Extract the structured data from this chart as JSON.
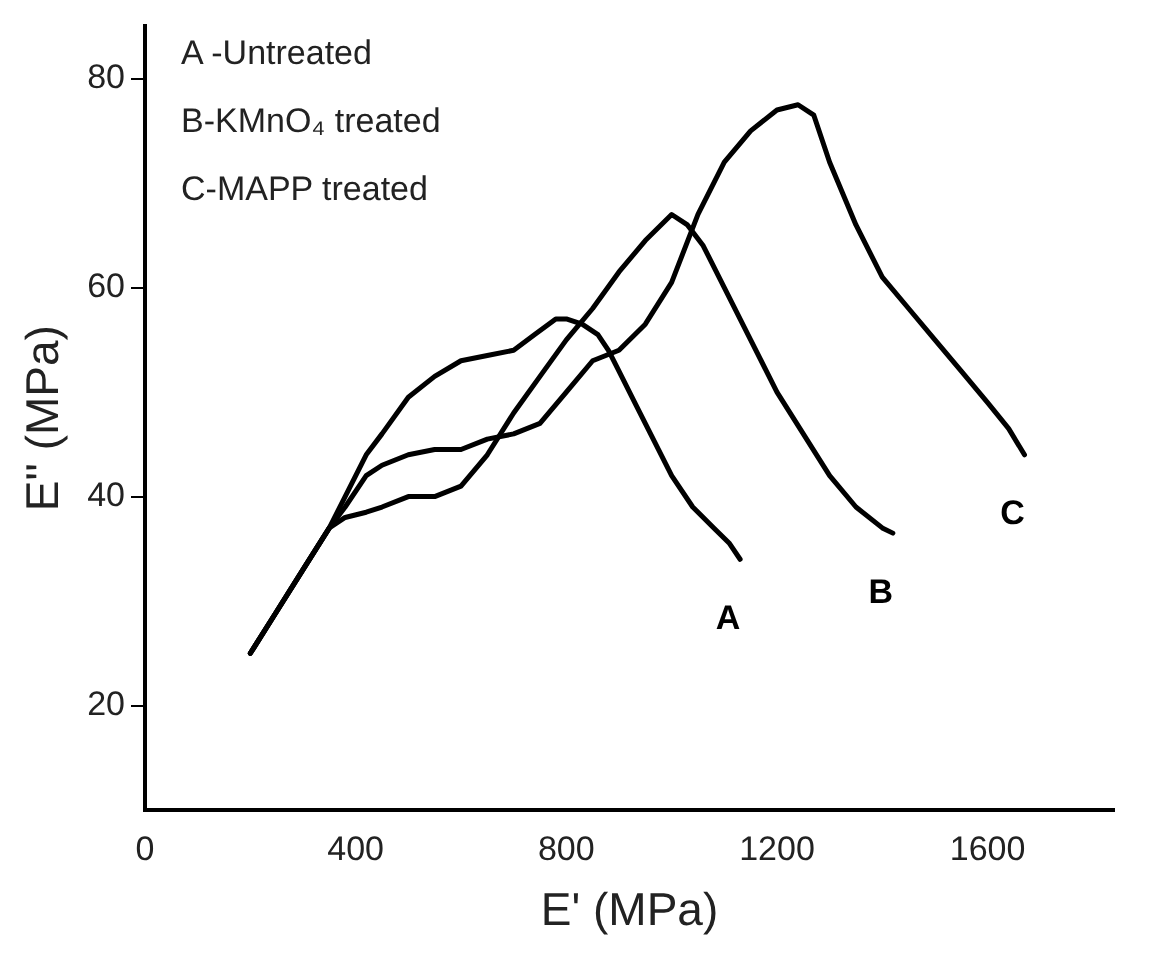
{
  "chart_data": {
    "type": "line",
    "xlabel": "E' (MPa)",
    "ylabel": "E'' (MPa)",
    "xlim": [
      0,
      1840
    ],
    "ylim": [
      10,
      85
    ],
    "xticks": [
      0,
      400,
      800,
      1200,
      1600
    ],
    "yticks": [
      20,
      40,
      60,
      80
    ],
    "grid": false,
    "legend": false,
    "marker": "none",
    "line_style": "solid",
    "annotations": [
      "A -Untreated",
      "B-KMnO₄ treated",
      "C-MAPP treated"
    ],
    "series": [
      {
        "name": "A",
        "color": "#000000",
        "x": [
          200,
          250,
          300,
          350,
          380,
          420,
          450,
          500,
          550,
          600,
          650,
          700,
          740,
          780,
          800,
          830,
          860,
          880,
          900,
          930,
          960,
          1000,
          1040,
          1080,
          1110,
          1130
        ],
        "values": [
          25,
          29,
          33,
          37,
          40,
          44,
          46,
          49.5,
          51.5,
          53,
          53.5,
          54,
          55.5,
          57,
          57,
          56.5,
          55.5,
          54,
          52,
          49,
          46,
          42,
          39,
          37,
          35.5,
          34
        ]
      },
      {
        "name": "B",
        "color": "#000000",
        "x": [
          200,
          250,
          300,
          350,
          380,
          420,
          450,
          500,
          550,
          600,
          650,
          700,
          750,
          800,
          850,
          900,
          950,
          1000,
          1030,
          1060,
          1100,
          1150,
          1200,
          1250,
          1300,
          1350,
          1400,
          1420
        ],
        "values": [
          25,
          29,
          33,
          37,
          38,
          38.5,
          39,
          40,
          40,
          41,
          44,
          48,
          51.5,
          55,
          58,
          61.5,
          64.5,
          67,
          66,
          64,
          60,
          55,
          50,
          46,
          42,
          39,
          37,
          36.5
        ]
      },
      {
        "name": "C",
        "color": "#000000",
        "x": [
          200,
          250,
          300,
          350,
          380,
          420,
          450,
          500,
          550,
          600,
          650,
          700,
          750,
          800,
          850,
          900,
          950,
          1000,
          1050,
          1100,
          1150,
          1200,
          1240,
          1270,
          1300,
          1350,
          1400,
          1450,
          1500,
          1550,
          1600,
          1640,
          1670
        ],
        "values": [
          25,
          29,
          33,
          37,
          39,
          42,
          43,
          44,
          44.5,
          44.5,
          45.5,
          46,
          47,
          50,
          53,
          54,
          56.5,
          60.5,
          67,
          72,
          75,
          77,
          77.5,
          76.5,
          72,
          66,
          61,
          58,
          55,
          52,
          49,
          46.5,
          44
        ]
      }
    ]
  }
}
